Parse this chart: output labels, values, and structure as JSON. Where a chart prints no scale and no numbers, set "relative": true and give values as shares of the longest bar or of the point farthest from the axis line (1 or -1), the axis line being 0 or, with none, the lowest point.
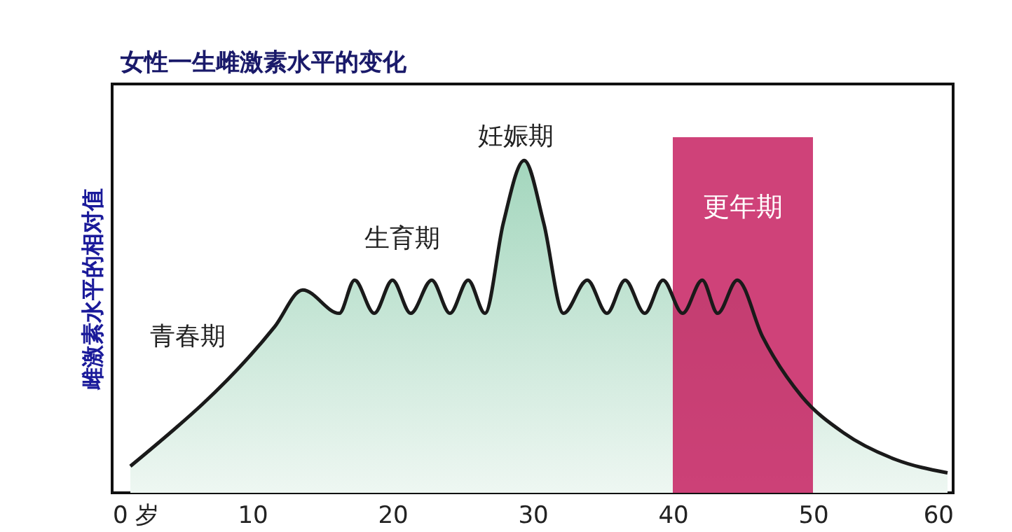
{
  "chart_data": {
    "type": "area",
    "title": "女性一生雌激素水平的变化",
    "ylabel": "雌激素水平的相对值",
    "relative": true,
    "x": [
      1.3,
      11.6,
      13.6,
      16.2,
      17.3,
      18.7,
      20.0,
      21.3,
      22.8,
      24.1,
      25.4,
      26.6,
      27.9,
      29.4,
      30.8,
      32.2,
      33.9,
      35.3,
      36.6,
      38.0,
      39.3,
      40.7,
      42.1,
      43.2,
      44.6,
      46.4,
      49.2,
      52.2,
      55.9,
      59.6
    ],
    "series": [
      {
        "color": "#a3d6bd",
        "values": [
          0.08,
          0.5,
          0.61,
          0.54,
          0.64,
          0.54,
          0.64,
          0.54,
          0.64,
          0.54,
          0.64,
          0.54,
          0.81,
          1.0,
          0.81,
          0.54,
          0.64,
          0.54,
          0.64,
          0.54,
          0.64,
          0.54,
          0.64,
          0.54,
          0.64,
          0.47,
          0.29,
          0.18,
          0.1,
          0.06
        ]
      }
    ],
    "xlim": [
      0,
      60
    ],
    "xticks": [
      {
        "value": 0,
        "label": "0 岁"
      },
      10,
      20,
      30,
      40,
      50,
      60
    ],
    "bands": [
      {
        "axis": "x",
        "from": 40,
        "to": 50,
        "label": "更年期",
        "color": "#c4185c"
      }
    ],
    "annotations": [
      "青春期",
      "生育期",
      "妊娠期"
    ],
    "grid": false
  }
}
